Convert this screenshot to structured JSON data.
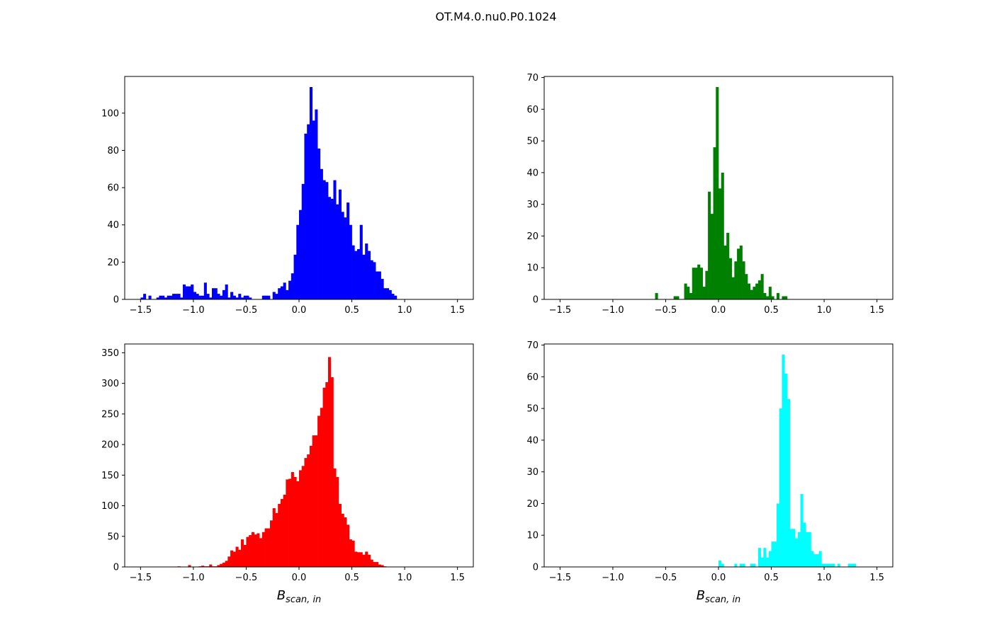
{
  "figure": {
    "title": "OT.M4.0.nu0.P0.1024"
  },
  "chart_data": [
    {
      "type": "bar",
      "color": "#0000ff",
      "xlim": [
        -1.65,
        1.65
      ],
      "ylim": [
        0,
        119.7
      ],
      "xticks": [
        "−1.5",
        "−1.0",
        "−0.5",
        "0.0",
        "0.5",
        "1.0",
        "1.5"
      ],
      "xtick_values": [
        -1.5,
        -1.0,
        -0.5,
        0.0,
        0.5,
        1.0,
        1.5
      ],
      "yticks": [
        "0",
        "20",
        "40",
        "60",
        "80",
        "100"
      ],
      "ytick_values": [
        0,
        20,
        40,
        60,
        80,
        100
      ],
      "xlabel": "",
      "bin_start": -1.5,
      "bin_width": 0.025,
      "values": [
        1,
        3,
        0,
        2,
        0,
        0,
        1,
        2,
        2,
        1,
        2,
        2,
        3,
        3,
        3,
        1,
        8,
        7,
        7,
        8,
        4,
        3,
        2,
        2,
        9,
        3,
        1,
        6,
        6,
        3,
        2,
        5,
        8,
        1,
        4,
        2,
        1,
        3,
        1,
        2,
        2,
        1,
        0,
        0,
        0,
        0,
        2,
        2,
        2,
        0,
        4,
        3,
        6,
        7,
        9,
        5,
        10,
        14,
        24,
        40,
        48,
        62,
        89,
        94,
        114,
        96,
        102,
        81,
        70,
        64,
        63,
        55,
        54,
        64,
        51,
        59,
        47,
        44,
        52,
        40,
        29,
        26,
        27,
        40,
        24,
        30,
        26,
        21,
        20,
        15,
        15,
        11,
        6,
        6,
        5,
        3,
        2,
        0,
        0,
        0,
        0,
        0,
        0,
        0,
        0,
        0,
        0,
        0,
        0,
        0,
        0,
        0,
        0,
        0,
        0,
        0
      ]
    },
    {
      "type": "bar",
      "color": "#008000",
      "xlim": [
        -1.65,
        1.65
      ],
      "ylim": [
        0,
        70.35
      ],
      "xticks": [
        "−1.5",
        "−1.0",
        "−0.5",
        "0.0",
        "0.5",
        "1.0",
        "1.5"
      ],
      "xtick_values": [
        -1.5,
        -1.0,
        -0.5,
        0.0,
        0.5,
        1.0,
        1.5
      ],
      "yticks": [
        "0",
        "10",
        "20",
        "30",
        "40",
        "50",
        "60",
        "70"
      ],
      "ytick_values": [
        0,
        10,
        20,
        30,
        40,
        50,
        60,
        70
      ],
      "xlabel": "",
      "bin_start": -1.5,
      "bin_width": 0.025,
      "values": [
        0,
        0,
        0,
        0,
        0,
        0,
        0,
        0,
        0,
        0,
        0,
        0,
        0,
        0,
        0,
        0,
        0,
        0,
        0,
        0,
        0,
        0,
        0,
        0,
        0,
        0,
        0,
        0,
        0,
        0,
        0,
        0,
        0,
        0,
        0,
        0,
        2,
        0,
        0,
        0,
        0,
        0,
        0,
        1,
        1,
        0,
        0,
        5,
        4,
        2,
        10,
        10,
        11,
        10,
        4,
        9,
        34,
        27,
        48,
        67,
        35,
        40,
        17,
        21,
        13,
        7,
        12,
        16,
        17,
        12,
        8,
        5,
        3,
        4,
        5,
        6,
        8,
        2,
        1,
        4,
        1,
        0,
        2,
        0,
        1,
        1,
        0,
        0,
        0,
        0,
        0,
        0,
        0,
        0,
        0,
        0,
        0,
        0,
        0,
        0,
        0,
        0,
        0,
        0,
        0,
        0,
        0,
        0,
        0,
        0,
        0,
        0,
        0,
        0,
        0,
        0,
        0,
        0,
        0,
        0
      ]
    },
    {
      "type": "bar",
      "color": "#ff0000",
      "xlim": [
        -1.65,
        1.65
      ],
      "ylim": [
        0,
        364.35
      ],
      "xticks": [
        "−1.5",
        "−1.0",
        "−0.5",
        "0.0",
        "0.5",
        "1.0",
        "1.5"
      ],
      "xtick_values": [
        -1.5,
        -1.0,
        -0.5,
        0.0,
        0.5,
        1.0,
        1.5
      ],
      "yticks": [
        "0",
        "50",
        "100",
        "150",
        "200",
        "250",
        "300",
        "350"
      ],
      "ytick_values": [
        0,
        50,
        100,
        150,
        200,
        250,
        300,
        350
      ],
      "xlabel": "B_{scan,in}",
      "xlabel_main": "B",
      "xlabel_sub": "scan, in",
      "bin_start": -1.5,
      "bin_width": 0.025,
      "values": [
        0,
        0,
        0,
        0,
        0,
        0,
        0,
        0,
        0,
        0,
        0,
        0,
        0,
        0,
        1,
        0,
        0,
        0,
        3,
        0,
        0,
        0,
        1,
        2,
        1,
        1,
        4,
        1,
        1,
        3,
        5,
        7,
        10,
        17,
        27,
        25,
        33,
        28,
        45,
        36,
        49,
        52,
        57,
        53,
        55,
        47,
        57,
        63,
        63,
        76,
        96,
        88,
        103,
        111,
        118,
        143,
        144,
        155,
        147,
        140,
        158,
        165,
        178,
        184,
        198,
        215,
        215,
        247,
        260,
        293,
        302,
        343,
        310,
        161,
        147,
        103,
        87,
        81,
        69,
        45,
        43,
        25,
        24,
        24,
        20,
        25,
        20,
        12,
        8,
        8,
        4,
        3,
        1,
        0,
        0,
        0,
        0,
        0,
        0,
        0,
        0,
        0,
        0,
        0,
        0,
        0,
        0,
        0,
        0,
        0,
        0,
        0,
        0,
        0,
        0,
        0,
        0,
        0,
        0,
        0
      ]
    },
    {
      "type": "bar",
      "color": "#00ffff",
      "xlim": [
        -1.65,
        1.65
      ],
      "ylim": [
        0,
        70.35
      ],
      "xticks": [
        "−1.5",
        "−1.0",
        "−0.5",
        "0.0",
        "0.5",
        "1.0",
        "1.5"
      ],
      "xtick_values": [
        -1.5,
        -1.0,
        -0.5,
        0.0,
        0.5,
        1.0,
        1.5
      ],
      "yticks": [
        "0",
        "10",
        "20",
        "30",
        "40",
        "50",
        "60",
        "70"
      ],
      "ytick_values": [
        0,
        10,
        20,
        30,
        40,
        50,
        60,
        70
      ],
      "xlabel": "B_{scan,in}",
      "xlabel_main": "B",
      "xlabel_sub": "scan, in",
      "bin_start": -1.5,
      "bin_width": 0.025,
      "values": [
        0,
        0,
        0,
        0,
        0,
        0,
        0,
        0,
        0,
        0,
        0,
        0,
        0,
        0,
        0,
        0,
        0,
        0,
        0,
        0,
        0,
        0,
        0,
        0,
        0,
        0,
        0,
        0,
        0,
        0,
        0,
        0,
        0,
        0,
        0,
        0,
        0,
        0,
        0,
        0,
        0,
        0,
        0,
        0,
        0,
        0,
        0,
        0,
        0,
        0,
        0,
        0,
        0,
        0,
        0,
        0,
        0,
        0,
        0,
        0,
        2,
        1,
        0,
        0,
        0,
        0,
        1,
        0,
        1,
        1,
        0,
        0,
        1,
        1,
        0,
        6,
        3,
        6,
        3,
        5,
        8,
        8,
        20,
        50,
        67,
        61,
        53,
        12,
        12,
        9,
        11,
        23,
        14,
        11,
        11,
        5,
        4,
        4,
        5,
        1,
        1,
        1,
        1,
        1,
        0,
        1,
        0,
        0,
        0,
        1,
        1,
        1,
        0,
        0,
        0,
        0,
        0,
        0,
        0,
        0
      ]
    }
  ]
}
